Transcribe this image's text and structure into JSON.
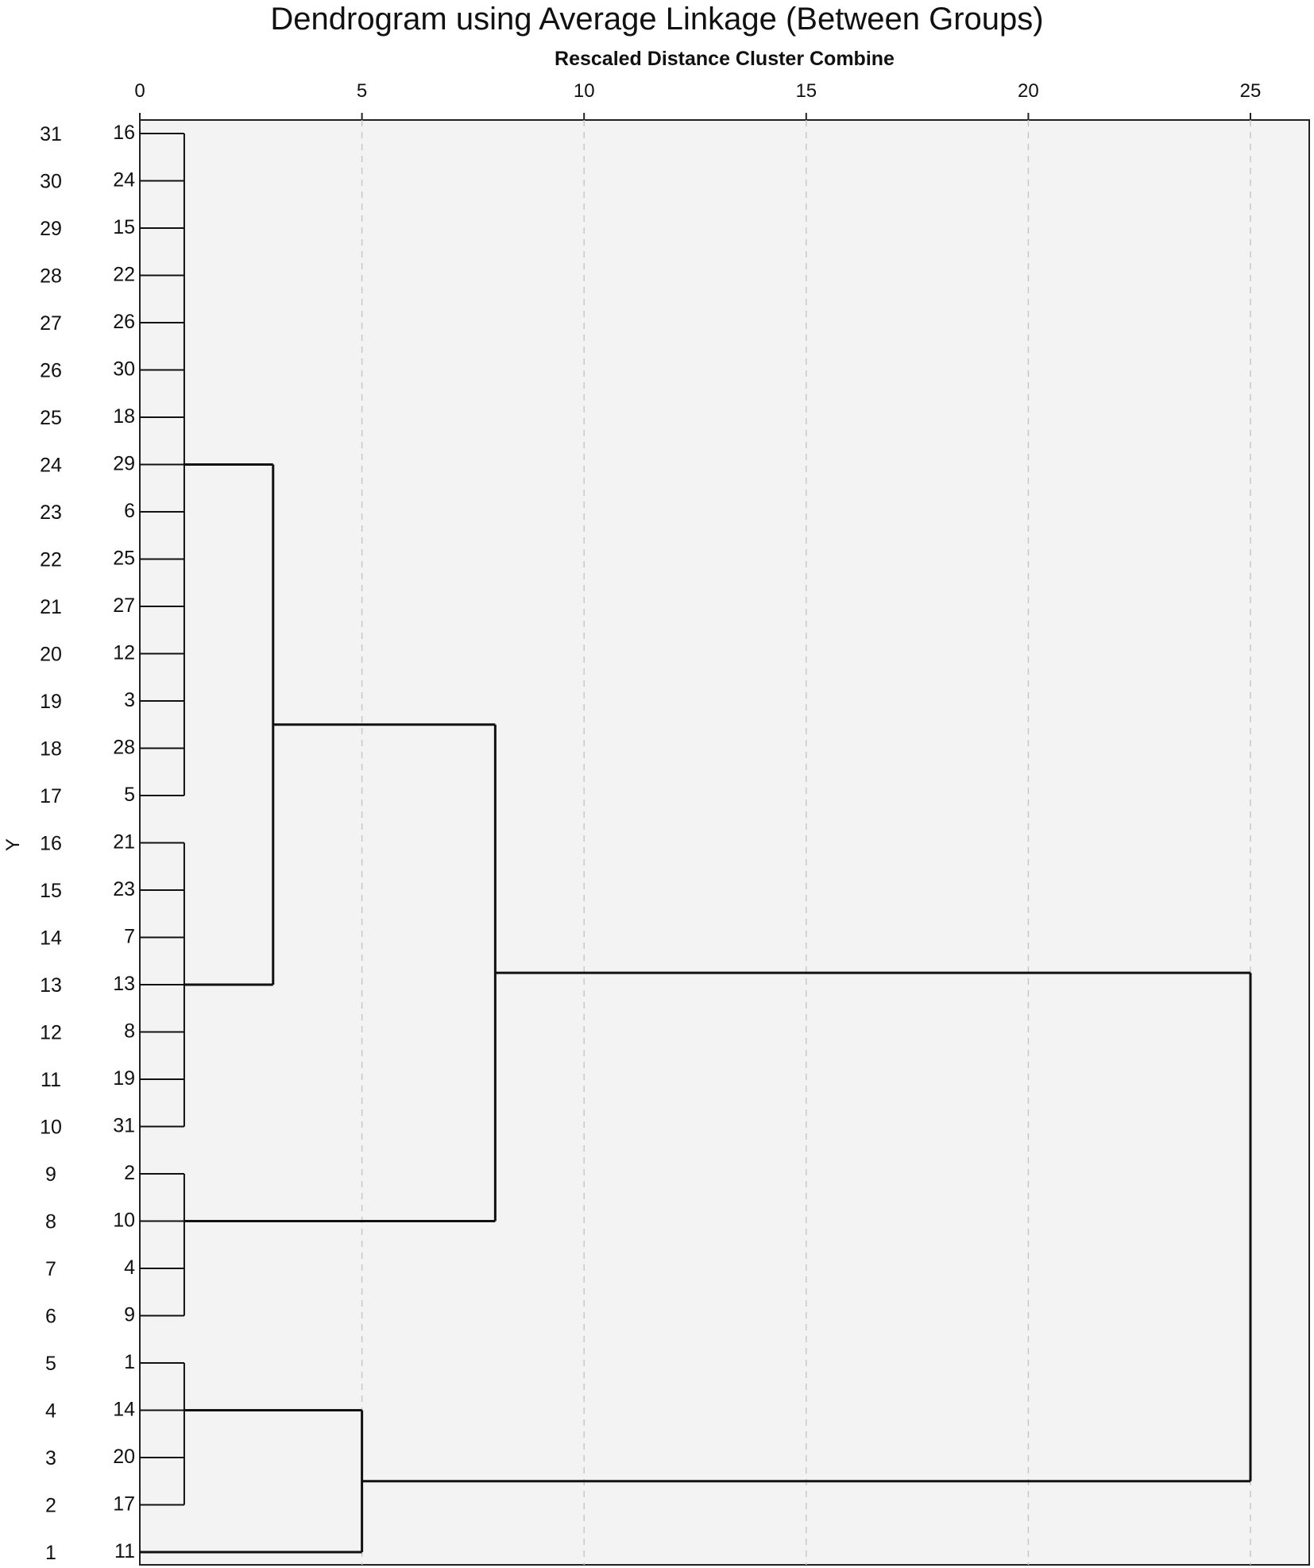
{
  "chart_data": {
    "type": "dendrogram",
    "title": "Dendrogram using Average Linkage (Between Groups)",
    "subtitle": "Rescaled Distance Cluster Combine",
    "ylabel": "Y",
    "xlim": [
      0,
      25
    ],
    "x_ticks": [
      0,
      5,
      10,
      15,
      20,
      25
    ],
    "grid": true,
    "row_positions": [
      31,
      30,
      29,
      28,
      27,
      26,
      25,
      24,
      23,
      22,
      21,
      20,
      19,
      18,
      17,
      16,
      15,
      14,
      13,
      12,
      11,
      10,
      9,
      8,
      7,
      6,
      5,
      4,
      3,
      2,
      1
    ],
    "leaf_labels": [
      "16",
      "24",
      "15",
      "22",
      "26",
      "30",
      "18",
      "29",
      "6",
      "25",
      "27",
      "12",
      "3",
      "28",
      "5",
      "21",
      "23",
      "7",
      "13",
      "8",
      "19",
      "31",
      "2",
      "10",
      "4",
      "9",
      "1",
      "14",
      "20",
      "17",
      "11"
    ],
    "merges": [
      {
        "cluster": "A",
        "members": [
          "16",
          "24",
          "15",
          "22",
          "26",
          "30",
          "18",
          "29",
          "6",
          "25",
          "27",
          "12",
          "3",
          "28",
          "5"
        ],
        "distance": 1
      },
      {
        "cluster": "B",
        "members": [
          "21",
          "23",
          "7",
          "13",
          "8",
          "19",
          "31"
        ],
        "distance": 1
      },
      {
        "cluster": "C",
        "members": [
          "2",
          "10",
          "4",
          "9"
        ],
        "distance": 1
      },
      {
        "cluster": "D",
        "members": [
          "1",
          "14",
          "20",
          "17"
        ],
        "distance": 1
      },
      {
        "cluster": "AB",
        "members": [
          "A",
          "B"
        ],
        "distance": 3
      },
      {
        "cluster": "DE",
        "members": [
          "D",
          "11"
        ],
        "distance": 5
      },
      {
        "cluster": "ABC",
        "members": [
          "AB",
          "C"
        ],
        "distance": 8
      },
      {
        "cluster": "ALL",
        "members": [
          "ABC",
          "DE"
        ],
        "distance": 25
      }
    ]
  }
}
